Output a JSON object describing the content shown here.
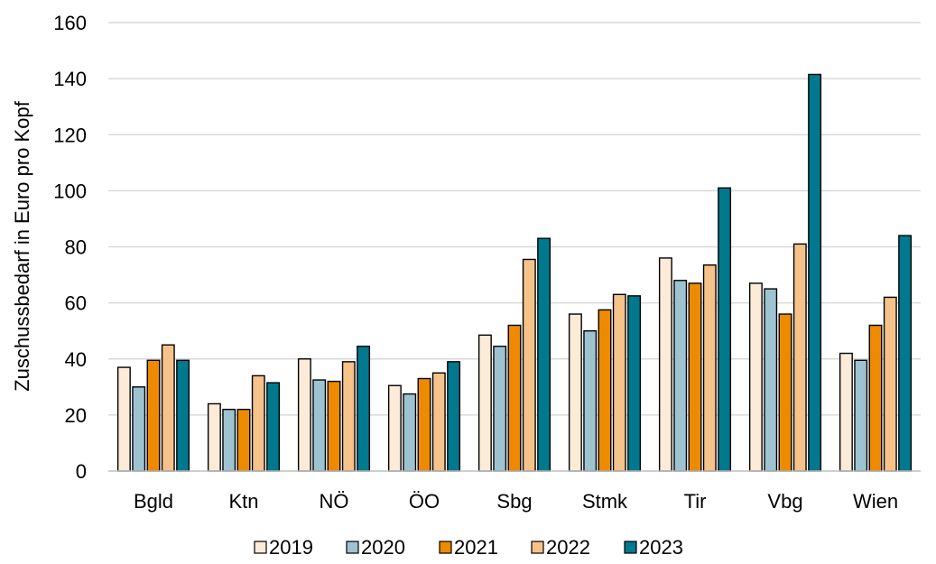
{
  "chart_data": {
    "type": "bar",
    "title": "",
    "xlabel": "",
    "ylabel": "Zuschussbedarf  in Euro pro Kopf",
    "ylim": [
      0,
      160
    ],
    "yticks": [
      0,
      20,
      40,
      60,
      80,
      100,
      120,
      140,
      160
    ],
    "grid": true,
    "legend_position": "bottom",
    "categories": [
      "Bgld",
      "Ktn",
      "NÖ",
      "ÖO",
      "Sbg",
      "Stmk",
      "Tir",
      "Vbg",
      "Wien"
    ],
    "series": [
      {
        "name": "2019",
        "color": "#FDEBD9",
        "values": [
          37,
          24,
          40,
          30.5,
          48.5,
          56,
          76,
          67,
          42
        ]
      },
      {
        "name": "2020",
        "color": "#9DC3D1",
        "values": [
          30,
          22,
          32.5,
          27.5,
          44.5,
          50,
          68,
          65,
          39.5
        ]
      },
      {
        "name": "2021",
        "color": "#EE8A00",
        "values": [
          39.5,
          22,
          32,
          33,
          52,
          57.5,
          67,
          56,
          52
        ]
      },
      {
        "name": "2022",
        "color": "#F5C28A",
        "values": [
          45,
          34,
          39,
          35,
          75.5,
          63,
          73.5,
          81,
          62
        ]
      },
      {
        "name": "2023",
        "color": "#00798E",
        "values": [
          39.5,
          31.5,
          44.5,
          39,
          83,
          62.5,
          101,
          141.5,
          84
        ]
      }
    ]
  }
}
